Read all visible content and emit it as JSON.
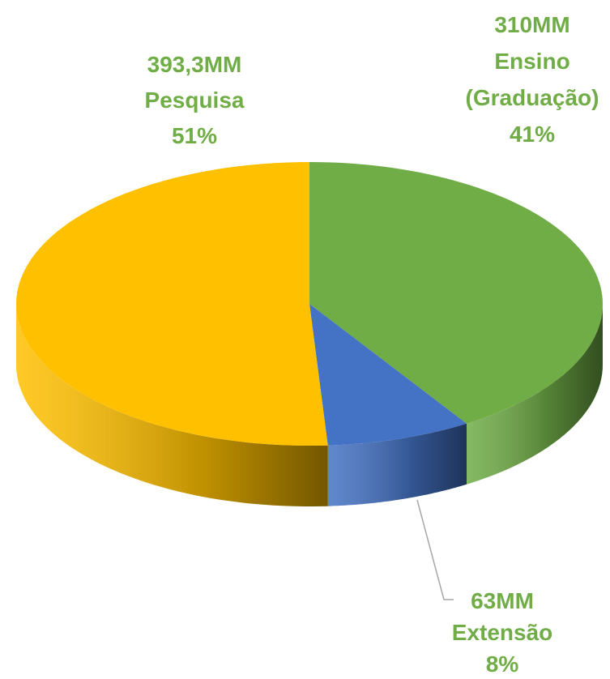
{
  "chart_data": {
    "type": "pie3d",
    "categories": [
      "Ensino (Graduação)",
      "Extensão",
      "Pesquisa"
    ],
    "values": [
      41,
      8,
      51
    ],
    "value_labels": [
      "41%",
      "8%",
      "51%"
    ],
    "amounts": [
      310,
      63,
      393.3
    ],
    "amount_labels": [
      "310MM",
      "63MM",
      "393,3MM"
    ],
    "colors": [
      "#70ad47",
      "#4472c4",
      "#ffc000"
    ],
    "label_color": "#70ad47"
  }
}
